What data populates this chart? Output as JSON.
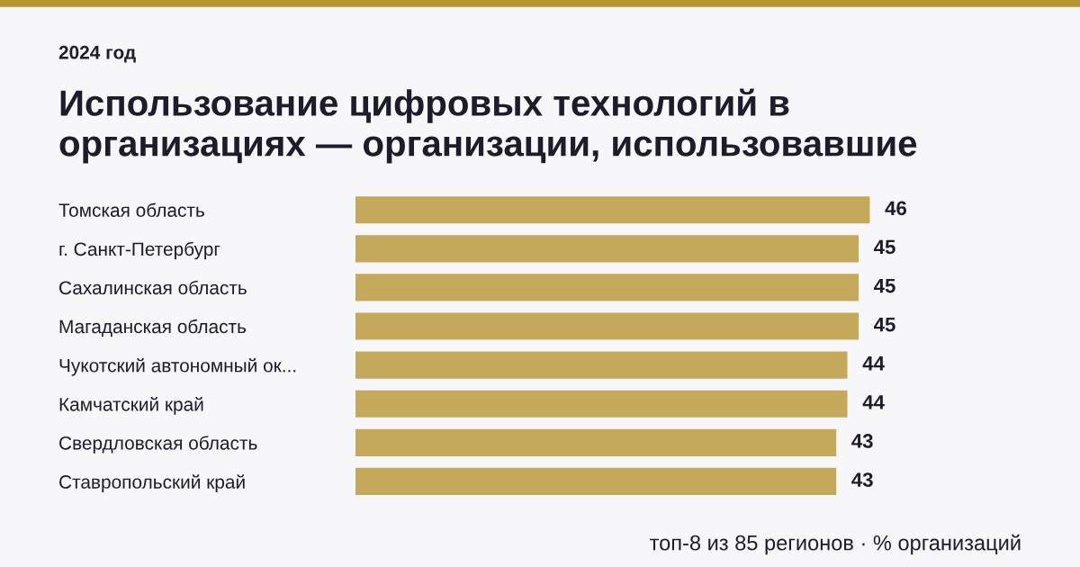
{
  "chart_data": {
    "type": "bar",
    "orientation": "horizontal",
    "subtitle": "2024 год",
    "title": "Использование цифровых технологий в\nорганизациях — организации, использовавшие",
    "categories": [
      "Томская область",
      "г. Санкт-Петербург",
      "Сахалинская область",
      "Магаданская область",
      "Чукотский автономный ок...",
      "Камчатский край",
      "Свердловская область",
      "Ставропольский край"
    ],
    "values": [
      46,
      45,
      45,
      45,
      44,
      44,
      43,
      43
    ],
    "color": "#c5a95a",
    "data_labels": true,
    "grid": false,
    "legend": false,
    "tick_labels": "y",
    "annotations": [
      "топ-8 из 85 регионов · % организаций"
    ]
  }
}
